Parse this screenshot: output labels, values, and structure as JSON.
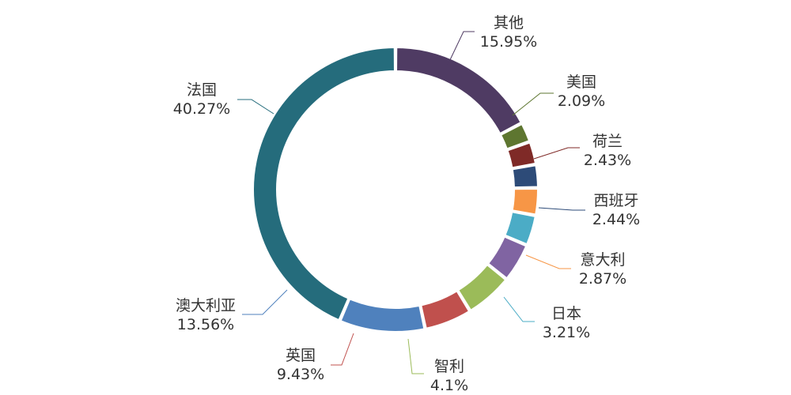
{
  "chart_data": {
    "type": "pie",
    "variant": "donut",
    "title": "",
    "legend": "none",
    "series": [
      {
        "name": "",
        "slices": [
          {
            "label": "其他",
            "pct_text": "15.95%",
            "value": 15.95,
            "color": "#4f3b63"
          },
          {
            "label": "美国",
            "pct_text": "2.09%",
            "value": 2.09,
            "color": "#5e7630"
          },
          {
            "label": "荷兰",
            "pct_text": "2.43%",
            "value": 2.43,
            "color": "#7f2a27"
          },
          {
            "label": "西班牙",
            "pct_text": "2.44%",
            "value": 2.44,
            "color": "#2d4b78"
          },
          {
            "label": "意大利",
            "pct_text": "2.87%",
            "value": 2.87,
            "color": "#f79646"
          },
          {
            "label": "日本",
            "pct_text": "3.21%",
            "value": 3.21,
            "color": "#4bacc6"
          },
          {
            "label": "智利",
            "pct_text": "4.1%",
            "value": 4.1,
            "color": "#8064a2"
          },
          {
            "label": "英国",
            "pct_text": "9.43%",
            "value": 9.43,
            "color": "#9bbb59"
          },
          {
            "label": "澳大利亚",
            "pct_text": "13.56%",
            "value": 13.56,
            "color": "#c0504d"
          },
          {
            "label": "法国",
            "pct_text": "40.27%",
            "value": 40.27,
            "color": "#4f81bd"
          }
        ]
      }
    ]
  },
  "ring_color": "#256c7c"
}
